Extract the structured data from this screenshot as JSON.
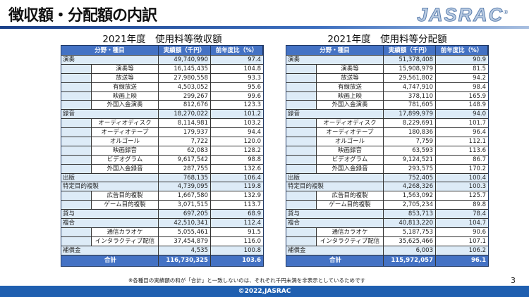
{
  "header": {
    "title": "徴収額・分配額の内訳",
    "logo": "JASRAC"
  },
  "columns": {
    "category": "分野・種目",
    "amount": "実績額（千円）",
    "ratio": "前年度比（%）"
  },
  "tables": [
    {
      "title": "2021年度　使用料等徴収額",
      "rows": [
        {
          "level": 0,
          "label": "演奏",
          "amount": "49,740,990",
          "ratio": "97.4"
        },
        {
          "level": 1,
          "label": "演奏等",
          "amount": "16,145,435",
          "ratio": "104.8"
        },
        {
          "level": 1,
          "label": "放送等",
          "amount": "27,980,558",
          "ratio": "93.3"
        },
        {
          "level": 1,
          "label": "有線放送",
          "amount": "4,503,052",
          "ratio": "95.6"
        },
        {
          "level": 1,
          "label": "映画上映",
          "amount": "299,267",
          "ratio": "99.6"
        },
        {
          "level": 1,
          "label": "外国入金演奏",
          "amount": "812,676",
          "ratio": "123.3"
        },
        {
          "level": 0,
          "label": "録音",
          "amount": "18,270,022",
          "ratio": "101.2"
        },
        {
          "level": 1,
          "label": "オーディオディスク",
          "amount": "8,114,981",
          "ratio": "103.2"
        },
        {
          "level": 1,
          "label": "オーディオテープ",
          "amount": "179,937",
          "ratio": "94.4"
        },
        {
          "level": 1,
          "label": "オルゴール",
          "amount": "7,722",
          "ratio": "120.0"
        },
        {
          "level": 1,
          "label": "映画録音",
          "amount": "62,083",
          "ratio": "128.2"
        },
        {
          "level": 1,
          "label": "ビデオグラム",
          "amount": "9,617,542",
          "ratio": "98.8"
        },
        {
          "level": 1,
          "label": "外国入金録音",
          "amount": "287,755",
          "ratio": "132.6"
        },
        {
          "level": 0,
          "label": "出版",
          "amount": "768,135",
          "ratio": "106.4"
        },
        {
          "level": 0,
          "label": "特定目的複製",
          "amount": "4,739,095",
          "ratio": "119.8"
        },
        {
          "level": 1,
          "label": "広告目的複製",
          "amount": "1,667,580",
          "ratio": "132.9"
        },
        {
          "level": 1,
          "label": "ゲーム目的複製",
          "amount": "3,071,515",
          "ratio": "113.7"
        },
        {
          "level": 0,
          "label": "貸与",
          "amount": "697,205",
          "ratio": "68.9"
        },
        {
          "level": 0,
          "label": "複合",
          "amount": "42,510,341",
          "ratio": "112.4"
        },
        {
          "level": 1,
          "label": "通信カラオケ",
          "amount": "5,055,461",
          "ratio": "91.5"
        },
        {
          "level": 1,
          "label": "インタラクティブ配信",
          "amount": "37,454,879",
          "ratio": "116.0"
        },
        {
          "level": 0,
          "label": "補償金",
          "amount": "4,535",
          "ratio": "100.8"
        }
      ],
      "total": {
        "label": "合計",
        "amount": "116,730,325",
        "ratio": "103.6"
      }
    },
    {
      "title": "2021年度　使用料等分配額",
      "rows": [
        {
          "level": 0,
          "label": "演奏",
          "amount": "51,378,408",
          "ratio": "90.9"
        },
        {
          "level": 1,
          "label": "演奏等",
          "amount": "15,908,979",
          "ratio": "81.5"
        },
        {
          "level": 1,
          "label": "放送等",
          "amount": "29,561,802",
          "ratio": "94.2"
        },
        {
          "level": 1,
          "label": "有線放送",
          "amount": "4,747,910",
          "ratio": "98.4"
        },
        {
          "level": 1,
          "label": "映画上映",
          "amount": "378,110",
          "ratio": "165.9"
        },
        {
          "level": 1,
          "label": "外国入金演奏",
          "amount": "781,605",
          "ratio": "148.9"
        },
        {
          "level": 0,
          "label": "録音",
          "amount": "17,899,979",
          "ratio": "94.0"
        },
        {
          "level": 1,
          "label": "オーディオディスク",
          "amount": "8,229,691",
          "ratio": "101.7"
        },
        {
          "level": 1,
          "label": "オーディオテープ",
          "amount": "180,836",
          "ratio": "96.4"
        },
        {
          "level": 1,
          "label": "オルゴール",
          "amount": "7,759",
          "ratio": "112.1"
        },
        {
          "level": 1,
          "label": "映画録音",
          "amount": "63,593",
          "ratio": "113.6"
        },
        {
          "level": 1,
          "label": "ビデオグラム",
          "amount": "9,124,521",
          "ratio": "86.7"
        },
        {
          "level": 1,
          "label": "外国入金録音",
          "amount": "293,575",
          "ratio": "170.2"
        },
        {
          "level": 0,
          "label": "出版",
          "amount": "752,405",
          "ratio": "100.4"
        },
        {
          "level": 0,
          "label": "特定目的複製",
          "amount": "4,268,326",
          "ratio": "100.3"
        },
        {
          "level": 1,
          "label": "広告目的複製",
          "amount": "1,563,092",
          "ratio": "125.7"
        },
        {
          "level": 1,
          "label": "ゲーム目的複製",
          "amount": "2,705,234",
          "ratio": "89.8"
        },
        {
          "level": 0,
          "label": "貸与",
          "amount": "853,713",
          "ratio": "78.4"
        },
        {
          "level": 0,
          "label": "複合",
          "amount": "40,813,220",
          "ratio": "104.7"
        },
        {
          "level": 1,
          "label": "通信カラオケ",
          "amount": "5,187,753",
          "ratio": "90.6"
        },
        {
          "level": 1,
          "label": "インタラクティブ配信",
          "amount": "35,625,466",
          "ratio": "107.1"
        },
        {
          "level": 0,
          "label": "補償金",
          "amount": "6,003",
          "ratio": "106.2"
        }
      ],
      "total": {
        "label": "合計",
        "amount": "115,972,057",
        "ratio": "96.1"
      }
    }
  ],
  "note": "※各種目の実績額の和が「合計」と一致しないのは、それぞれ千円未満を非表示としているためです",
  "page_number": "3",
  "footer": "©2022,JASRAC"
}
